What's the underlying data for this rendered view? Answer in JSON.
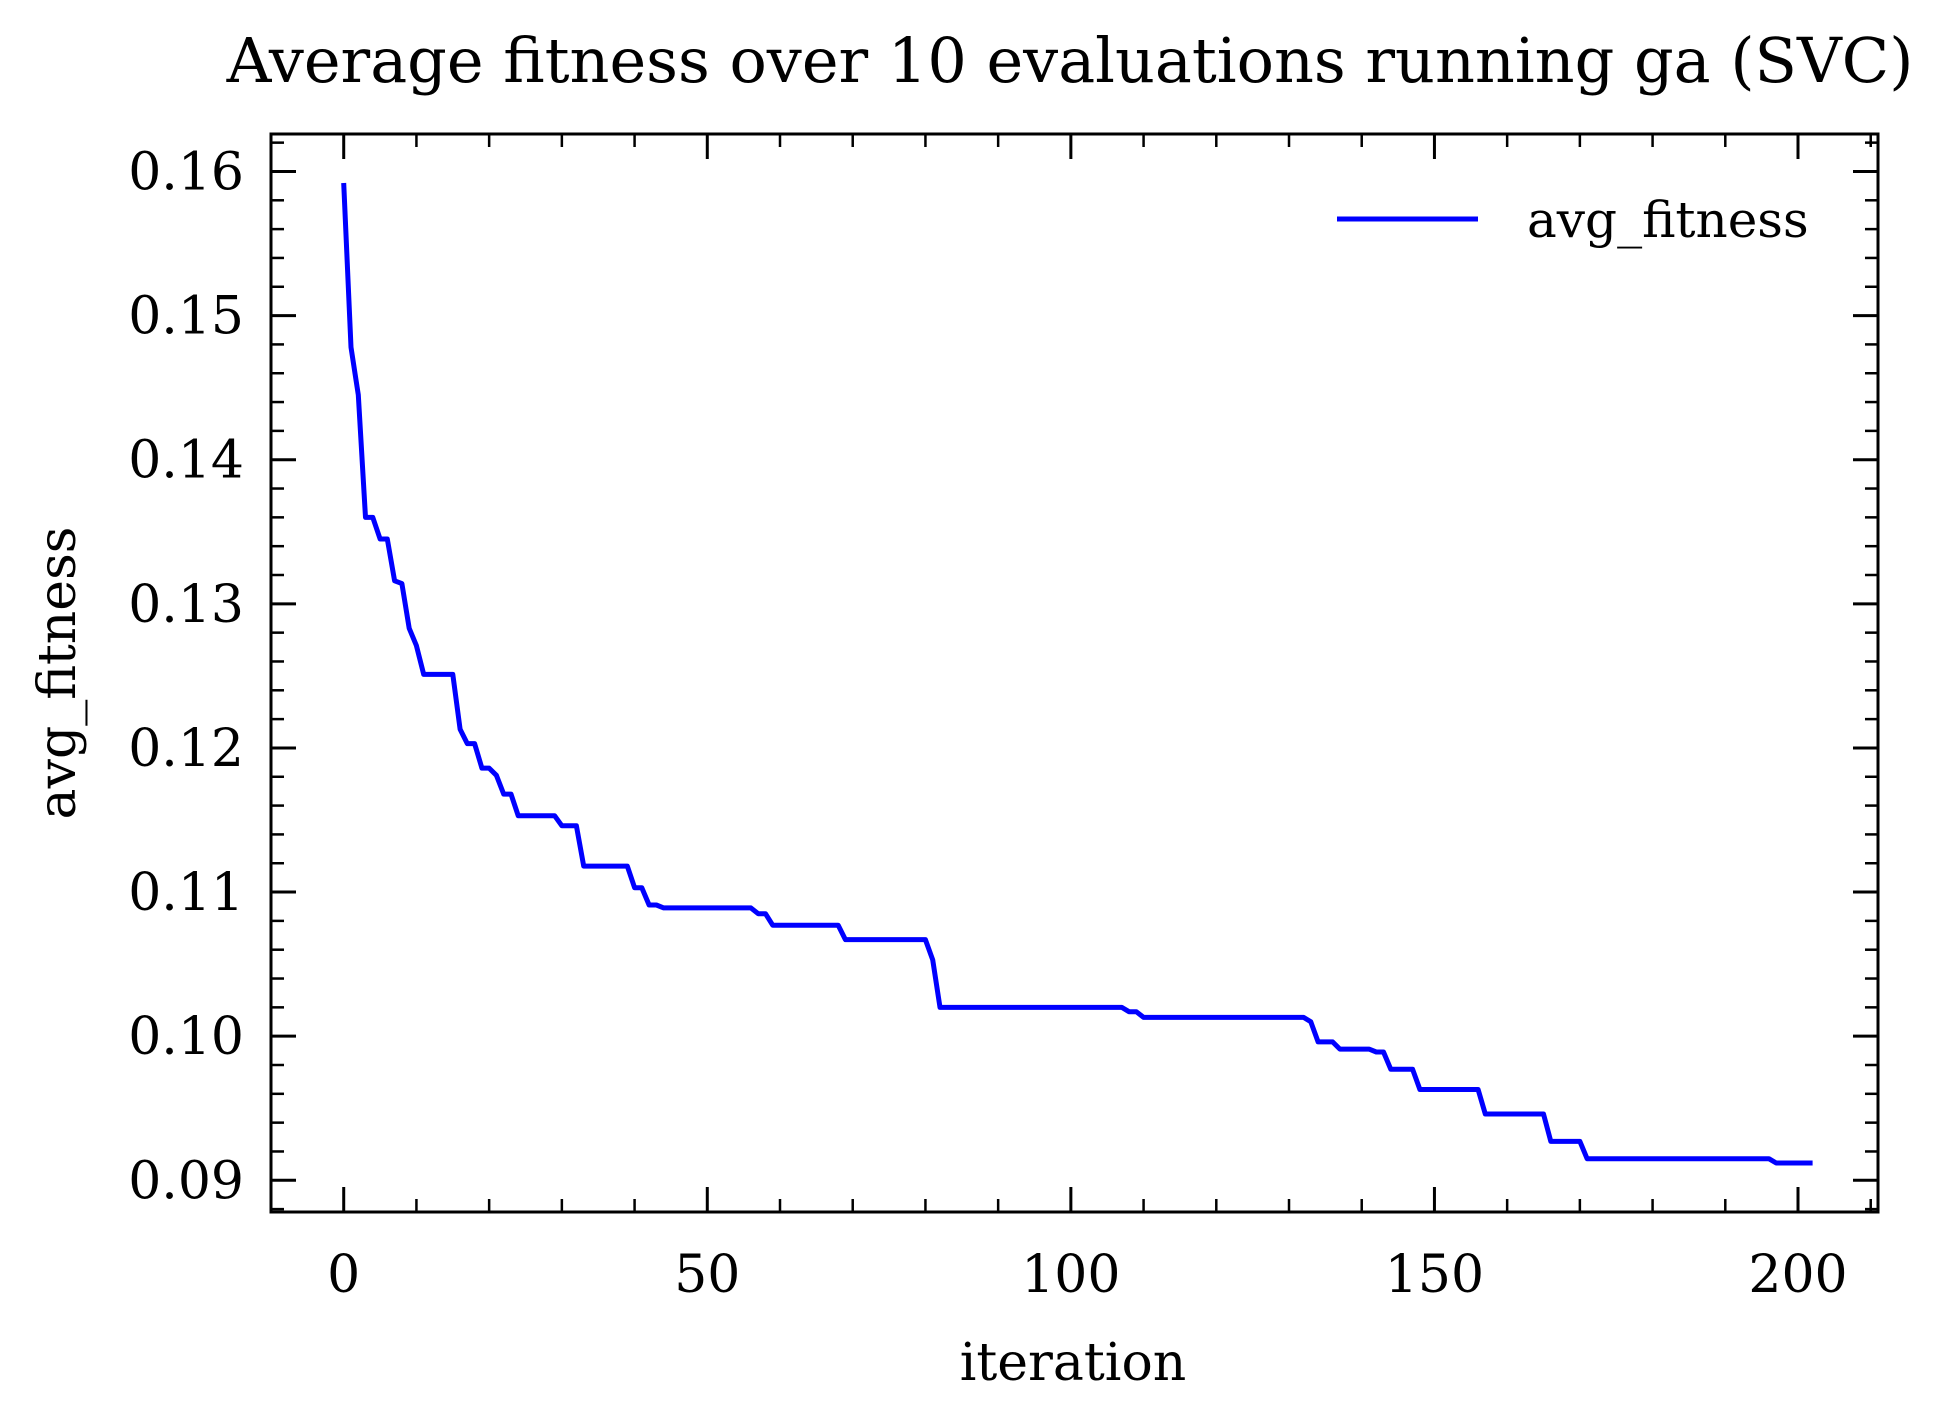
{
  "chart_data": {
    "type": "line",
    "title": "Average fitness over 10 evaluations running ga (SVC)",
    "xlabel": "iteration",
    "ylabel": "avg_fitness",
    "xlim": [
      -10,
      211
    ],
    "ylim": [
      0.0878,
      0.1626
    ],
    "x_major_ticks": [
      0,
      50,
      100,
      150,
      200
    ],
    "x_tick_labels": [
      "0",
      "50",
      "100",
      "150",
      "200"
    ],
    "x_minor_step": 10,
    "y_major_ticks": [
      0.09,
      0.1,
      0.11,
      0.12,
      0.13,
      0.14,
      0.15,
      0.16
    ],
    "y_tick_labels": [
      "0.09",
      "0.10",
      "0.11",
      "0.12",
      "0.13",
      "0.14",
      "0.15",
      "0.16"
    ],
    "y_minor_step": 0.002,
    "legend_position": "top-right",
    "grid": false,
    "series": [
      {
        "name": "avg_fitness",
        "color": "#0000ff",
        "points": [
          [
            0,
            0.1592
          ],
          [
            1,
            0.1478
          ],
          [
            2,
            0.1445
          ],
          [
            3,
            0.136
          ],
          [
            4,
            0.136
          ],
          [
            5,
            0.1345
          ],
          [
            6,
            0.1345
          ],
          [
            7,
            0.1316
          ],
          [
            8,
            0.1314
          ],
          [
            9,
            0.1283
          ],
          [
            10,
            0.1271
          ],
          [
            11,
            0.1251
          ],
          [
            12,
            0.1251
          ],
          [
            13,
            0.1251
          ],
          [
            14,
            0.1251
          ],
          [
            15,
            0.1251
          ],
          [
            16,
            0.1213
          ],
          [
            17,
            0.1203
          ],
          [
            18,
            0.1203
          ],
          [
            19,
            0.1186
          ],
          [
            20,
            0.1186
          ],
          [
            21,
            0.1181
          ],
          [
            22,
            0.1168
          ],
          [
            23,
            0.1168
          ],
          [
            24,
            0.1153
          ],
          [
            25,
            0.1153
          ],
          [
            26,
            0.1153
          ],
          [
            27,
            0.1153
          ],
          [
            28,
            0.1153
          ],
          [
            29,
            0.1153
          ],
          [
            30,
            0.1146
          ],
          [
            31,
            0.1146
          ],
          [
            32,
            0.1146
          ],
          [
            33,
            0.1118
          ],
          [
            34,
            0.1118
          ],
          [
            35,
            0.1118
          ],
          [
            36,
            0.1118
          ],
          [
            37,
            0.1118
          ],
          [
            38,
            0.1118
          ],
          [
            39,
            0.1118
          ],
          [
            40,
            0.1103
          ],
          [
            41,
            0.1103
          ],
          [
            42,
            0.1091
          ],
          [
            43,
            0.1091
          ],
          [
            44,
            0.1089
          ],
          [
            50,
            0.1089
          ],
          [
            56,
            0.1089
          ],
          [
            57,
            0.1085
          ],
          [
            58,
            0.1085
          ],
          [
            59,
            0.1077
          ],
          [
            68,
            0.1077
          ],
          [
            69,
            0.1067
          ],
          [
            80,
            0.1067
          ],
          [
            81,
            0.1053
          ],
          [
            82,
            0.102
          ],
          [
            107,
            0.102
          ],
          [
            108,
            0.1017
          ],
          [
            109,
            0.1017
          ],
          [
            110,
            0.1013
          ],
          [
            132,
            0.1013
          ],
          [
            133,
            0.101
          ],
          [
            134,
            0.0996
          ],
          [
            136,
            0.0996
          ],
          [
            137,
            0.0991
          ],
          [
            141,
            0.0991
          ],
          [
            142,
            0.0989
          ],
          [
            143,
            0.0989
          ],
          [
            144,
            0.0977
          ],
          [
            147,
            0.0977
          ],
          [
            148,
            0.0963
          ],
          [
            156,
            0.0963
          ],
          [
            157,
            0.0946
          ],
          [
            165,
            0.0946
          ],
          [
            166,
            0.0927
          ],
          [
            170,
            0.0927
          ],
          [
            171,
            0.0915
          ],
          [
            196,
            0.0915
          ],
          [
            197,
            0.0912
          ],
          [
            202,
            0.0912
          ]
        ]
      }
    ]
  }
}
